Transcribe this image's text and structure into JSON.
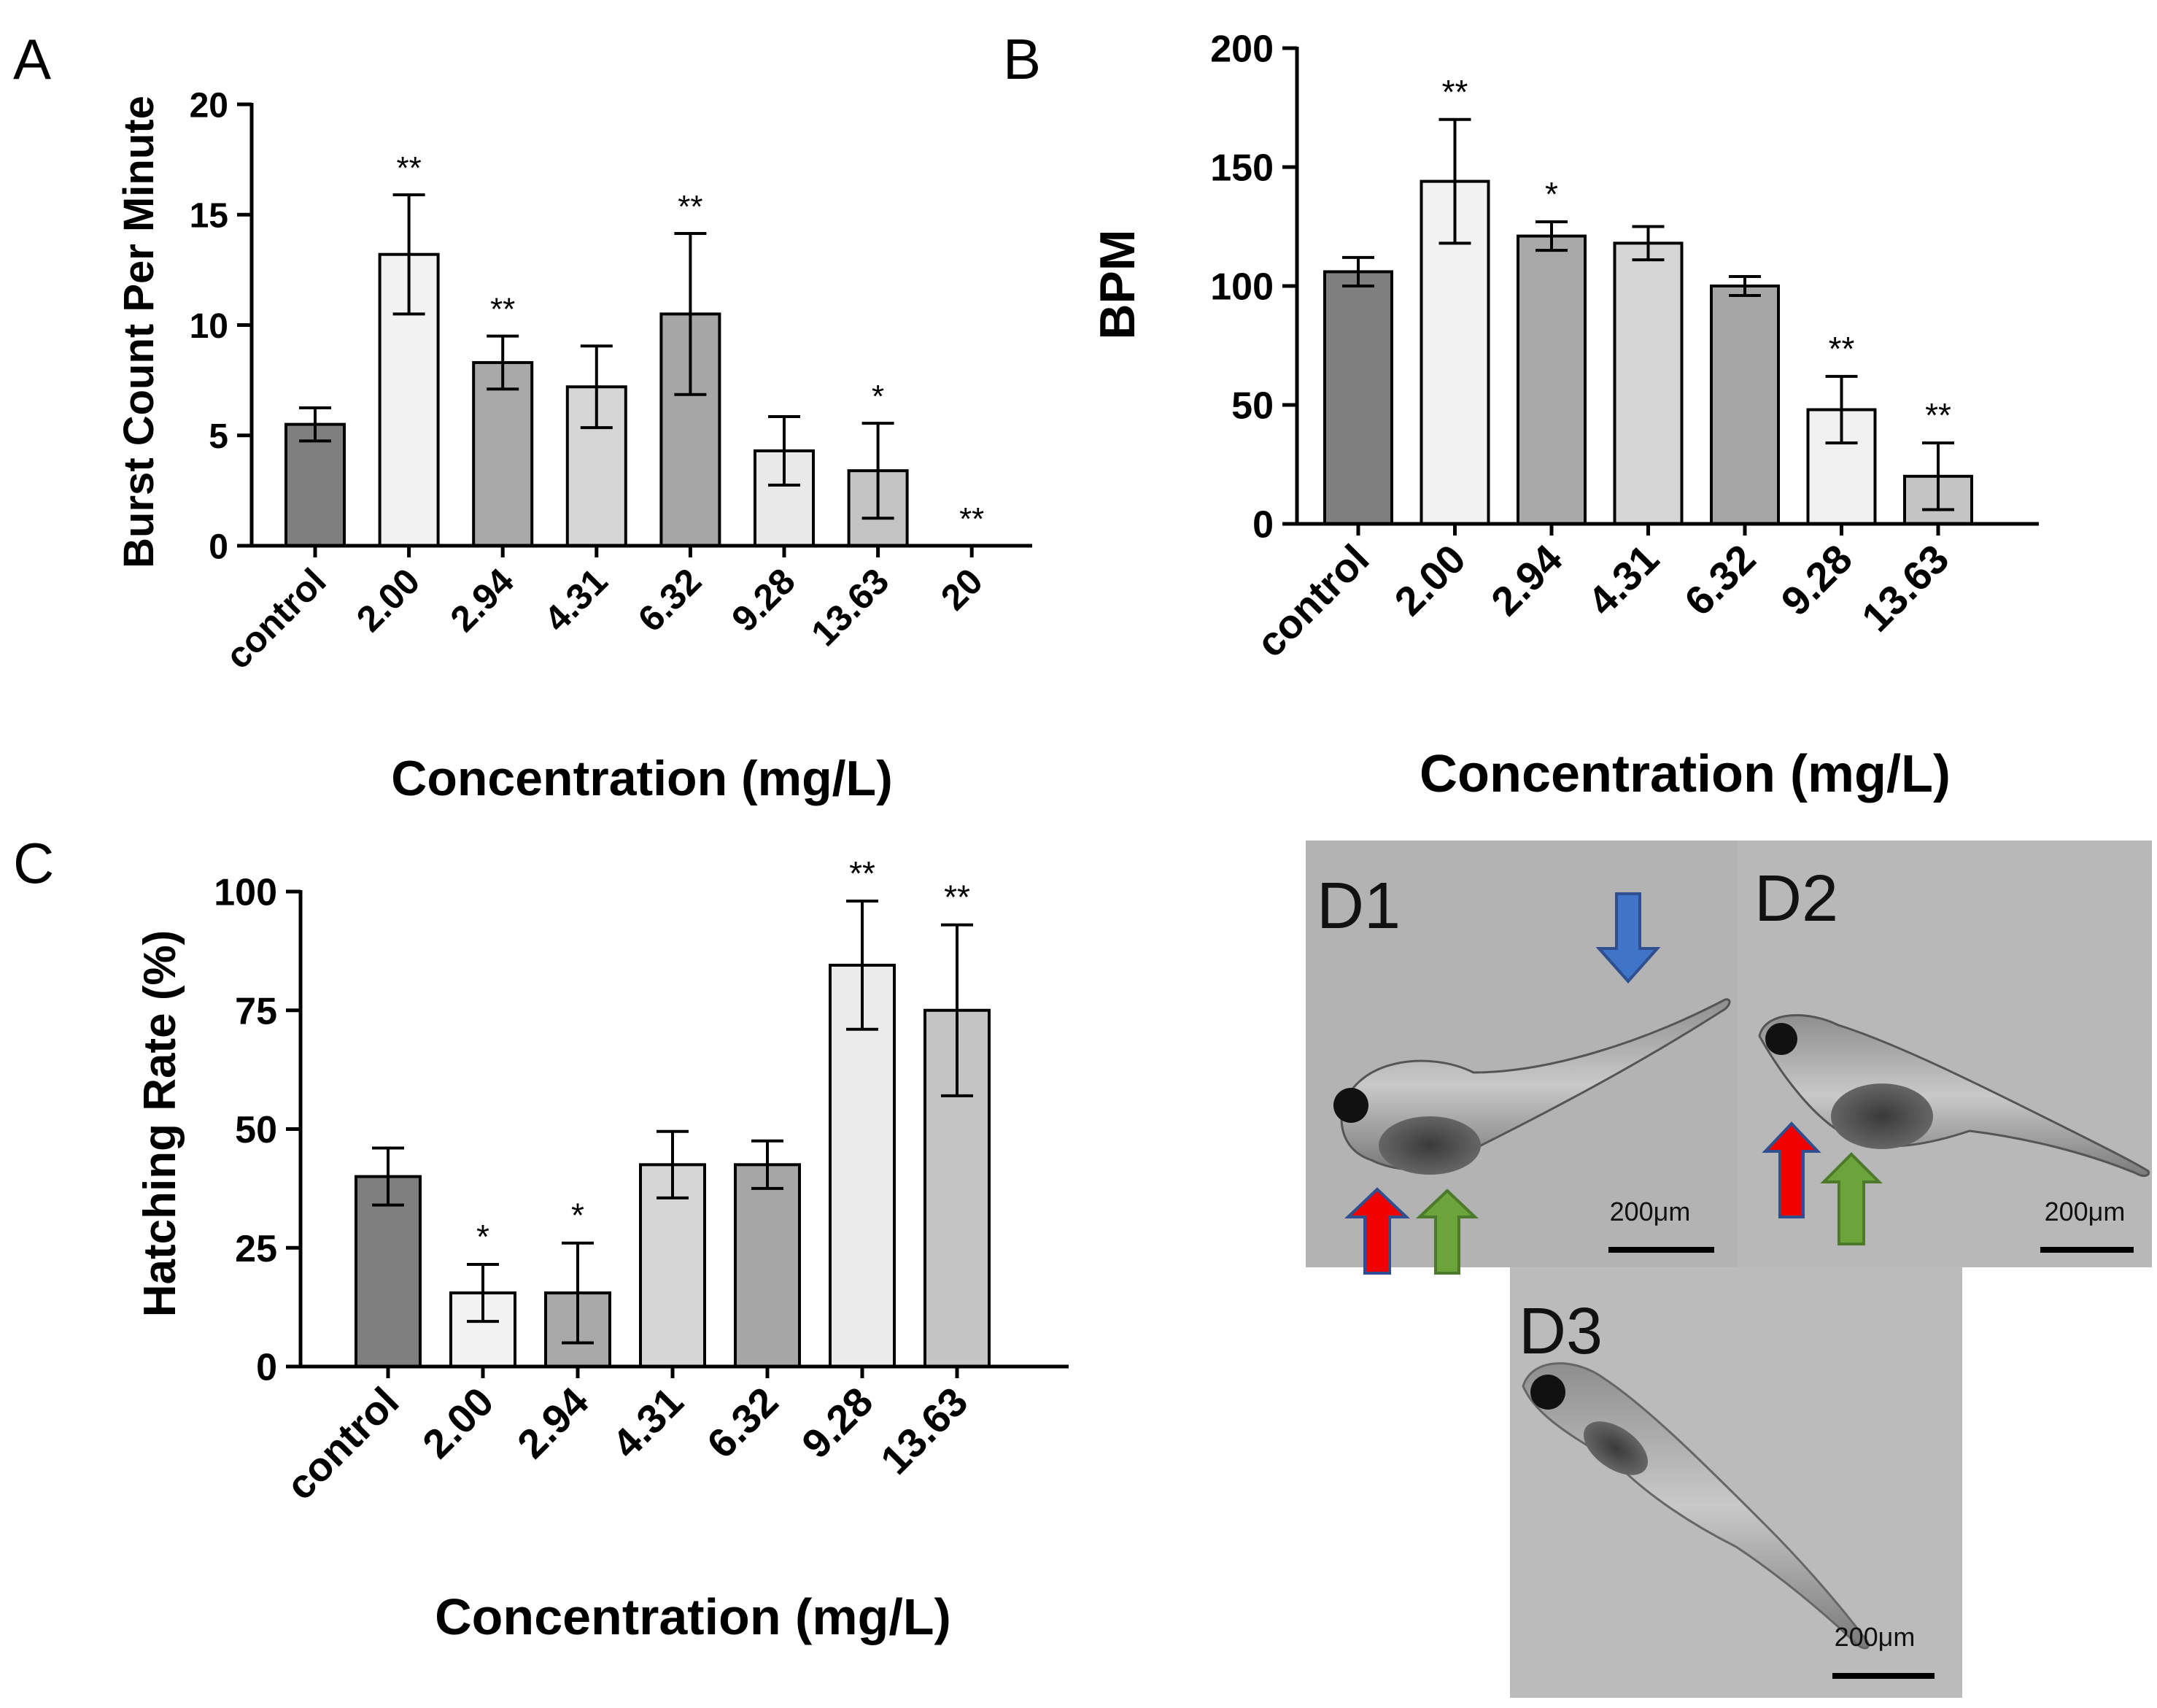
{
  "colors": {
    "axis": "#000000",
    "bar_stroke": "#000000",
    "image_bg": "#b3b3b3",
    "arrow_red": "#f10000",
    "arrow_green": "#6aa43a",
    "arrow_blue": "#3f74c9",
    "arrow_outline": "#2f4f8f"
  },
  "chart_data": [
    {
      "panel": "A",
      "type": "bar",
      "ylabel": "Burst Count Per Minute",
      "xlabel": "Concentration (mg/L)",
      "ylim": [
        0,
        20
      ],
      "yticks": [
        0,
        5,
        10,
        15,
        20
      ],
      "categories": [
        "control",
        "2.00",
        "2.94",
        "4.31",
        "6.32",
        "9.28",
        "13.63",
        "20"
      ],
      "values": [
        5.5,
        13.2,
        8.3,
        7.2,
        10.5,
        4.3,
        3.4,
        0
      ],
      "errors": [
        0.75,
        2.7,
        1.2,
        1.85,
        3.65,
        1.55,
        2.15,
        0
      ],
      "significance": [
        "",
        "**",
        "**",
        "",
        "**",
        "",
        "*",
        "**"
      ],
      "fills": [
        "#7f7f7f",
        "#f2f2f2",
        "#a9a9a9",
        "#d6d6d6",
        "#a6a6a6",
        "#e9e9e9",
        "#c4c4c4",
        "#ffffff"
      ]
    },
    {
      "panel": "B",
      "type": "bar",
      "ylabel": "BPM",
      "xlabel": "Concentration (mg/L)",
      "ylim": [
        0,
        200
      ],
      "yticks": [
        0,
        50,
        100,
        150,
        200
      ],
      "categories": [
        "control",
        "2.00",
        "2.94",
        "4.31",
        "6.32",
        "9.28",
        "13.63"
      ],
      "values": [
        106,
        144,
        121,
        118,
        100,
        48,
        20
      ],
      "errors": [
        6,
        26,
        6,
        7,
        4,
        14,
        14
      ],
      "significance": [
        "",
        "**",
        "*",
        "",
        "",
        "**",
        "**"
      ],
      "fills": [
        "#7f7f7f",
        "#f2f2f2",
        "#a9a9a9",
        "#d6d6d6",
        "#a6a6a6",
        "#f0f0f0",
        "#c4c4c4"
      ]
    },
    {
      "panel": "C",
      "type": "bar",
      "ylabel": "Hatching Rate (%)",
      "xlabel": "Concentration (mg/L)",
      "ylim": [
        0,
        100
      ],
      "yticks": [
        0,
        25,
        50,
        75,
        100
      ],
      "categories": [
        "control",
        "2.00",
        "2.94",
        "4.31",
        "6.32",
        "9.28",
        "13.63"
      ],
      "values": [
        40,
        15.5,
        15.5,
        42.5,
        42.5,
        84.5,
        75
      ],
      "errors": [
        6,
        6,
        10.5,
        7,
        5,
        13.5,
        18
      ],
      "significance": [
        "",
        "*",
        "*",
        "",
        "",
        "**",
        "**"
      ],
      "fills": [
        "#7f7f7f",
        "#f2f2f2",
        "#a9a9a9",
        "#d6d6d6",
        "#a6a6a6",
        "#ebebeb",
        "#c4c4c4"
      ]
    }
  ],
  "micrographs": [
    {
      "label": "D1",
      "scale_label": "200μm",
      "icon": "zebrafish-larva-icon"
    },
    {
      "label": "D2",
      "scale_label": "200μm",
      "icon": "zebrafish-larva-icon"
    },
    {
      "label": "D3",
      "scale_label": "200μm",
      "icon": "zebrafish-larva-icon"
    }
  ]
}
